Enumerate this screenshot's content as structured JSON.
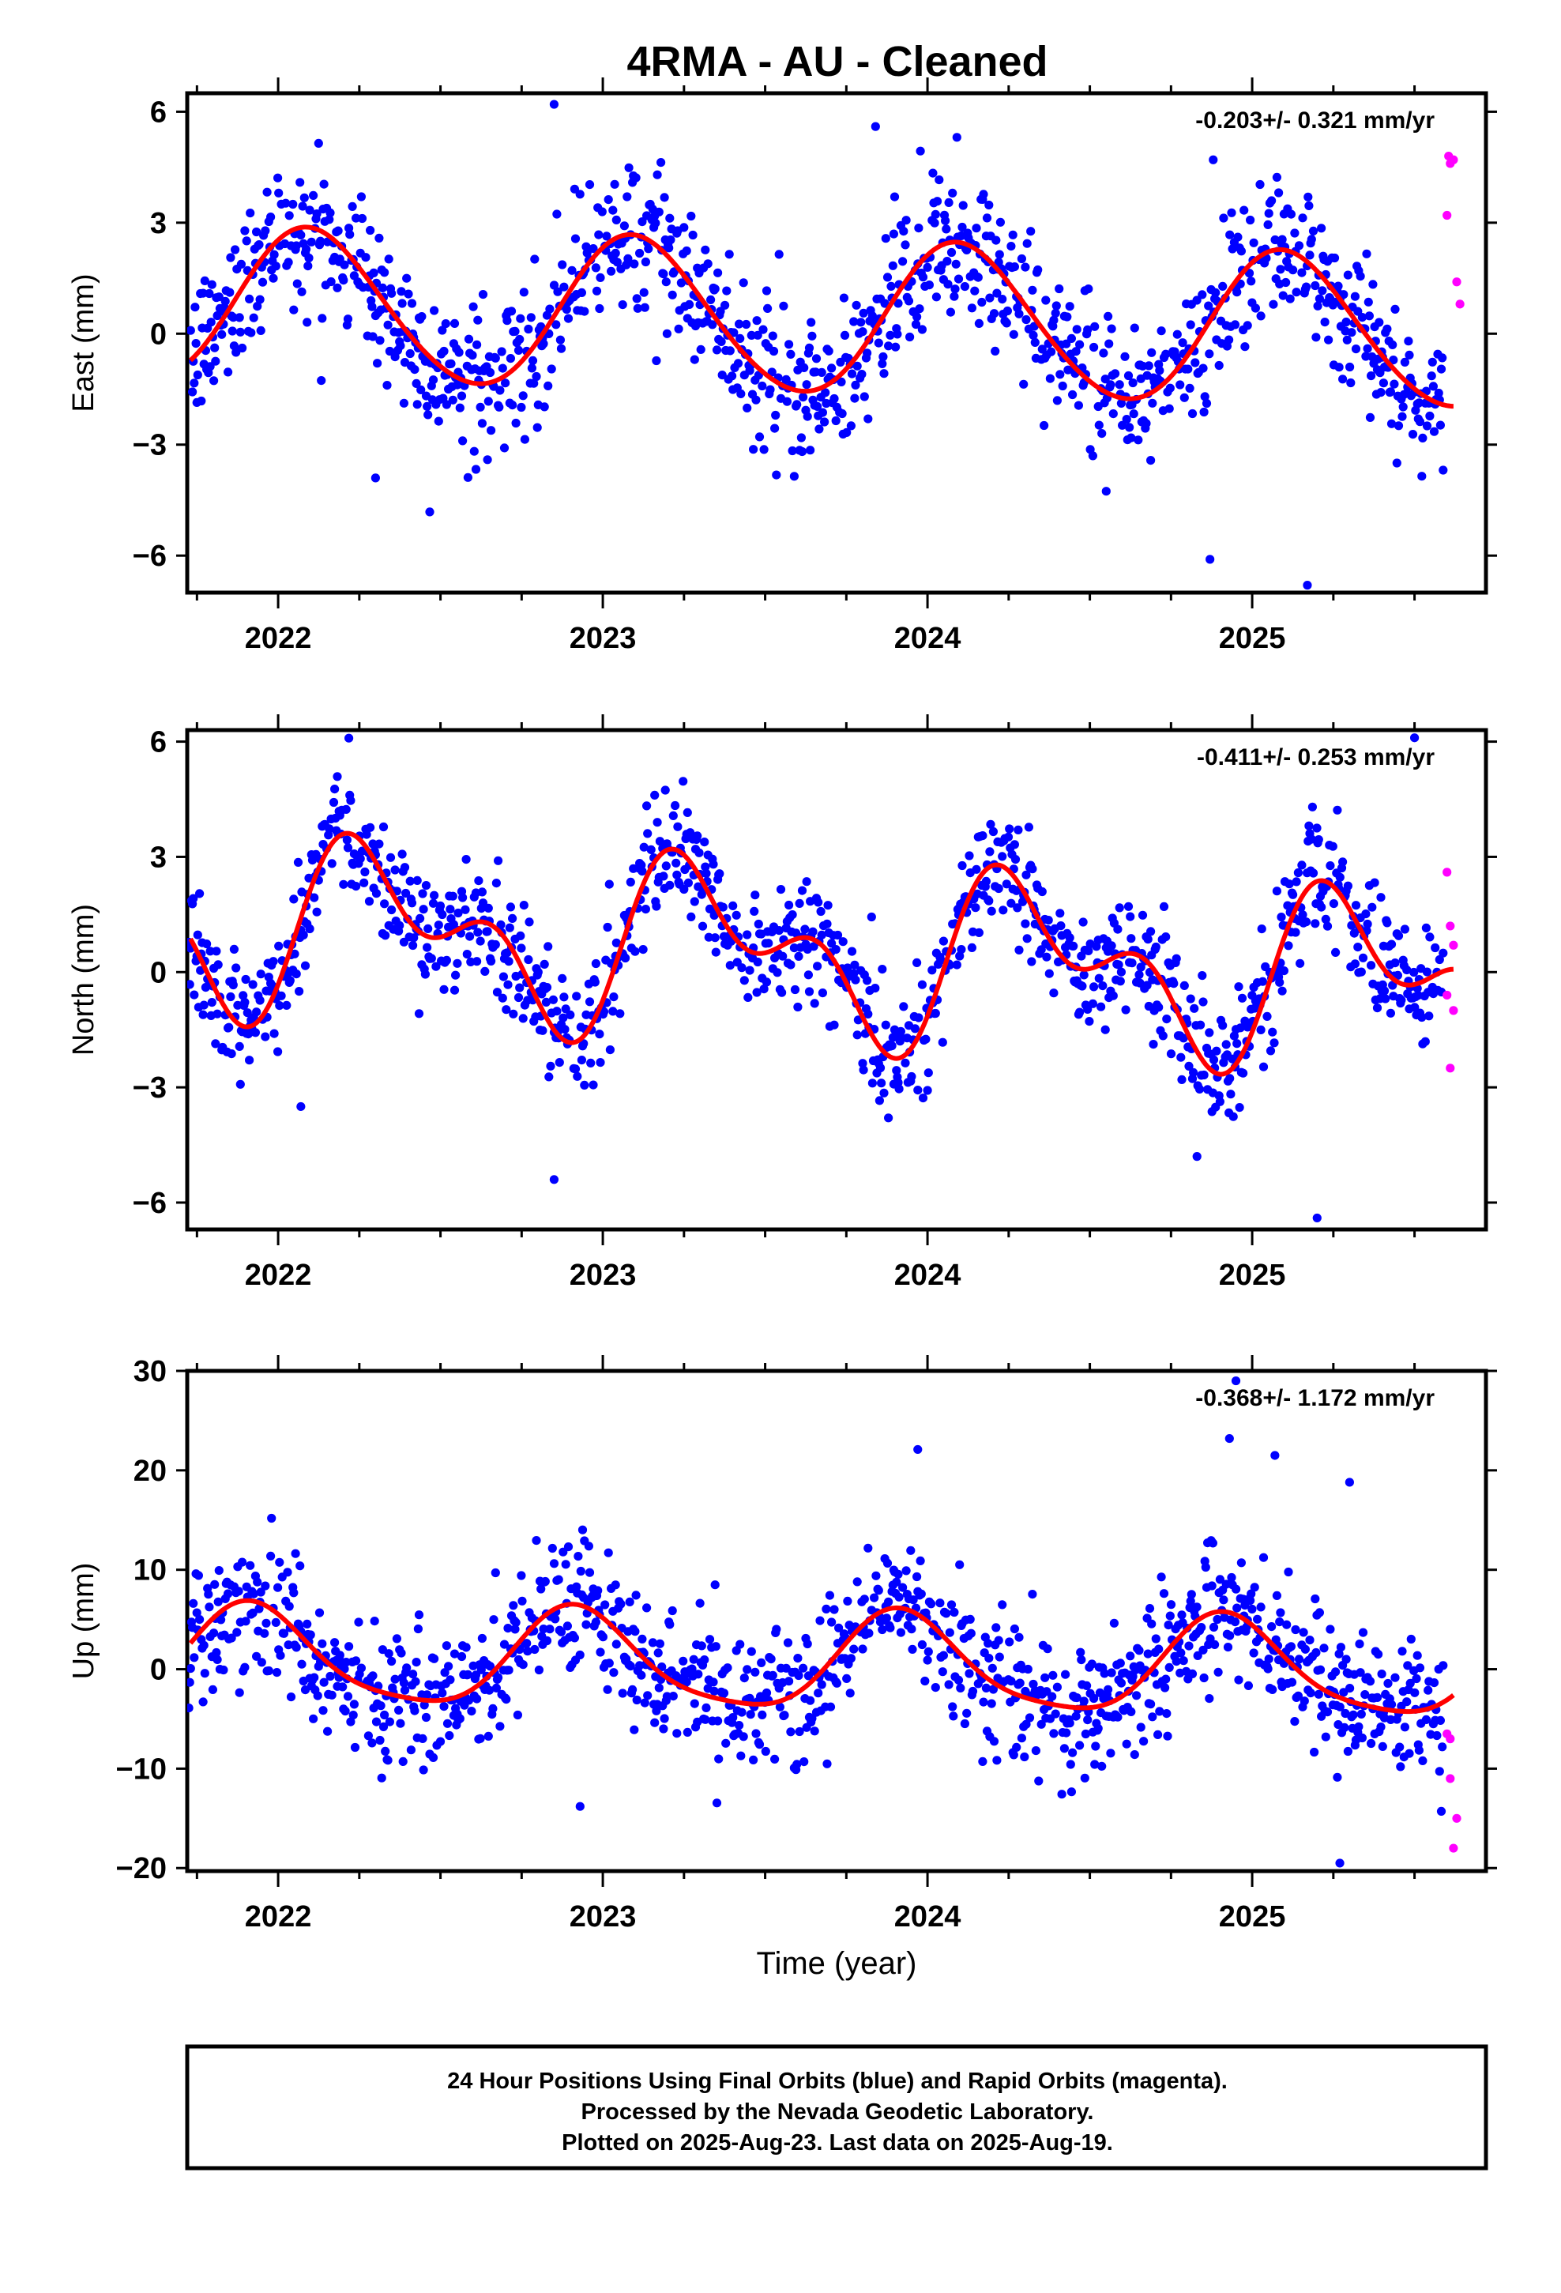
{
  "title": "4RMA  - AU - Cleaned",
  "colors": {
    "final_orbits": "#0000ff",
    "rapid_orbits": "#ff00ff",
    "model_fit": "#ff0000",
    "frame": "#000000"
  },
  "chart_data": [
    {
      "type": "scatter",
      "ylabel": "East (mm)",
      "xlim": [
        2021.72,
        2025.72
      ],
      "ylim": [
        -7,
        6.5
      ],
      "yticks": [
        6,
        3,
        0,
        -3,
        -6
      ],
      "ytick_labels": [
        "6",
        "3",
        "0",
        "−3",
        "−6"
      ],
      "xticks": [
        2022,
        2023,
        2024,
        2025
      ],
      "xtick_labels": [
        "2022",
        "2023",
        "2024",
        "2025"
      ],
      "rate_label": "-0.203+/- 0.321 mm/yr",
      "model": {
        "trend_mm_per_yr": -0.203,
        "offset": 0.4,
        "annual_cos": -1.5,
        "annual_sin": 1.4,
        "semiannual_cos": -0.1,
        "semiannual_sin": -0.1
      },
      "scatter_sd": 1.0,
      "outliers": [
        {
          "x": 2022.85,
          "y": 6.2
        },
        {
          "x": 2023.84,
          "y": 5.6
        },
        {
          "x": 2024.88,
          "y": 4.7
        },
        {
          "x": 2024.87,
          "y": -6.1
        },
        {
          "x": 2025.17,
          "y": -6.8
        },
        {
          "x": 2022.3,
          "y": -3.9
        }
      ],
      "rapid": [
        {
          "x": 2025.605,
          "y": 4.8
        },
        {
          "x": 2025.61,
          "y": 4.6
        },
        {
          "x": 2025.62,
          "y": 4.7
        },
        {
          "x": 2025.6,
          "y": 3.2
        },
        {
          "x": 2025.63,
          "y": 1.4
        },
        {
          "x": 2025.64,
          "y": 0.8
        }
      ]
    },
    {
      "type": "scatter",
      "ylabel": "North (mm)",
      "xlim": [
        2021.72,
        2025.72
      ],
      "ylim": [
        -6.7,
        6.3
      ],
      "yticks": [
        6,
        3,
        0,
        -3,
        -6
      ],
      "ytick_labels": [
        "6",
        "3",
        "0",
        "−3",
        "−6"
      ],
      "xticks": [
        2022,
        2023,
        2024,
        2025
      ],
      "xtick_labels": [
        "2022",
        "2023",
        "2024",
        "2025"
      ],
      "rate_label": "-0.411+/- 0.253 mm/yr",
      "model": {
        "trend_mm_per_yr": -0.411,
        "offset": 0.5,
        "annual_cos": -1.4,
        "annual_sin": -1.0,
        "semiannual_cos": 1.1,
        "semiannual_sin": -0.6
      },
      "scatter_sd": 0.8,
      "outliers": [
        {
          "x": 2022.85,
          "y": -5.4
        },
        {
          "x": 2025.2,
          "y": -6.4
        },
        {
          "x": 2025.5,
          "y": 6.1
        },
        {
          "x": 2024.83,
          "y": -4.8
        },
        {
          "x": 2022.07,
          "y": -3.5
        }
      ],
      "rapid": [
        {
          "x": 2025.6,
          "y": 2.6
        },
        {
          "x": 2025.61,
          "y": 1.2
        },
        {
          "x": 2025.62,
          "y": 0.7
        },
        {
          "x": 2025.6,
          "y": -0.6
        },
        {
          "x": 2025.62,
          "y": -1.0
        },
        {
          "x": 2025.61,
          "y": -2.5
        }
      ]
    },
    {
      "type": "scatter",
      "ylabel": "Up (mm)",
      "xlabel": "Time (year)",
      "xlim": [
        2021.72,
        2025.72
      ],
      "ylim": [
        -20.3,
        30
      ],
      "yticks": [
        30,
        20,
        10,
        0,
        -10,
        -20
      ],
      "ytick_labels": [
        "30",
        "20",
        "10",
        "0",
        "−10",
        "−20"
      ],
      "xticks": [
        2022,
        2023,
        2024,
        2025
      ],
      "xtick_labels": [
        "2022",
        "2023",
        "2024",
        "2025"
      ],
      "rate_label": "-0.368+/- 1.172 mm/yr",
      "model": {
        "trend_mm_per_yr": -0.368,
        "offset": 0.5,
        "annual_cos": 1.5,
        "annual_sin": 4.6,
        "semiannual_cos": -0.5,
        "semiannual_sin": 0.8
      },
      "scatter_sd": 3.5,
      "outliers": [
        {
          "x": 2024.95,
          "y": 29.0
        },
        {
          "x": 2024.93,
          "y": 23.2
        },
        {
          "x": 2023.97,
          "y": 22.1
        },
        {
          "x": 2025.3,
          "y": 18.8
        },
        {
          "x": 2025.27,
          "y": -19.5
        },
        {
          "x": 2022.93,
          "y": -13.8
        },
        {
          "x": 2025.07,
          "y": 21.5
        }
      ],
      "rapid": [
        {
          "x": 2025.6,
          "y": -6.5
        },
        {
          "x": 2025.61,
          "y": -7.0
        },
        {
          "x": 2025.61,
          "y": -11.0
        },
        {
          "x": 2025.63,
          "y": -15.0
        },
        {
          "x": 2025.62,
          "y": -18.0
        }
      ]
    }
  ],
  "footer": {
    "line1": "24 Hour Positions Using Final Orbits (blue) and Rapid Orbits (magenta).",
    "line2": "Processed by the Nevada Geodetic Laboratory.",
    "line3": "Plotted on 2025-Aug-23. Last data on 2025-Aug-19."
  }
}
